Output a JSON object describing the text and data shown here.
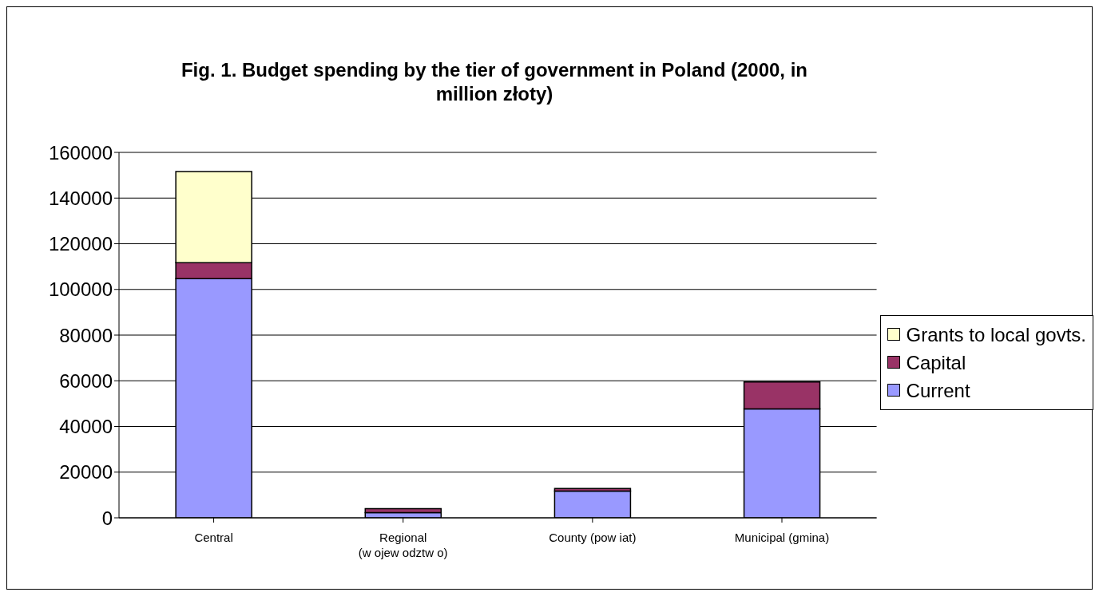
{
  "chart_data": {
    "type": "bar",
    "title": "Fig. 1. Budget spending by the tier of government in Poland (2000, in million złoty)",
    "categories": [
      "Central",
      "Regional (w ojew odztw o)",
      "County (pow iat)",
      "Municipal (gmina)"
    ],
    "stacked": true,
    "series": [
      {
        "name": "Current",
        "color": "#9999ff",
        "values": [
          104700,
          2300,
          11700,
          47700
        ]
      },
      {
        "name": "Capital",
        "color": "#993366",
        "values": [
          7000,
          1700,
          1100,
          11800
        ]
      },
      {
        "name": "Grants to local govts.",
        "color": "#ffffcc",
        "values": [
          39900,
          null,
          null,
          null
        ]
      }
    ],
    "ylim": [
      0,
      160000
    ],
    "yticks": [
      0,
      20000,
      40000,
      60000,
      80000,
      100000,
      120000,
      140000,
      160000
    ],
    "grid": "y",
    "legend": "right"
  }
}
